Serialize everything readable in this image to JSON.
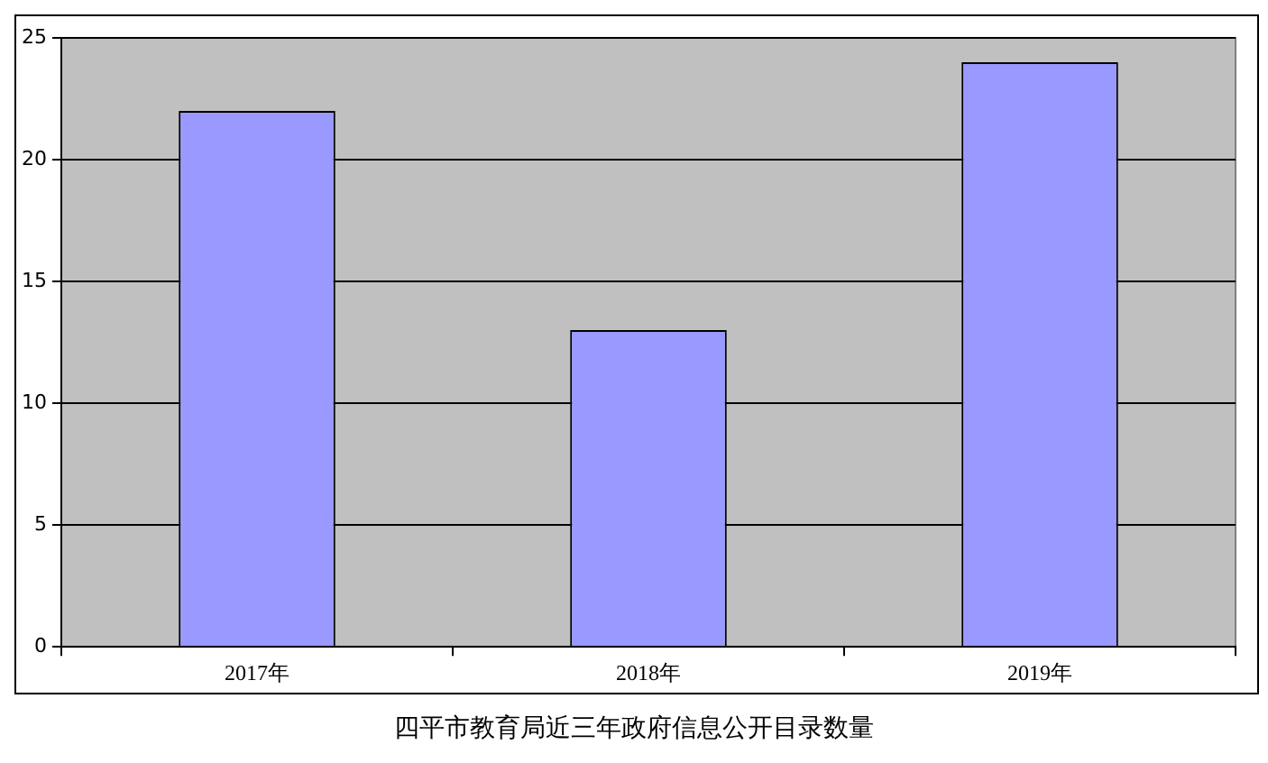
{
  "chart_data": {
    "type": "bar",
    "title": "四平市教育局近三年政府信息公开目录数量",
    "categories": [
      "2017年",
      "2018年",
      "2019年"
    ],
    "values": [
      22,
      13,
      24
    ],
    "color": "#9999ff",
    "ylim": [
      0,
      25
    ],
    "yticks": [
      0,
      5,
      10,
      15,
      20,
      25
    ],
    "grid": "y",
    "legend": false
  }
}
